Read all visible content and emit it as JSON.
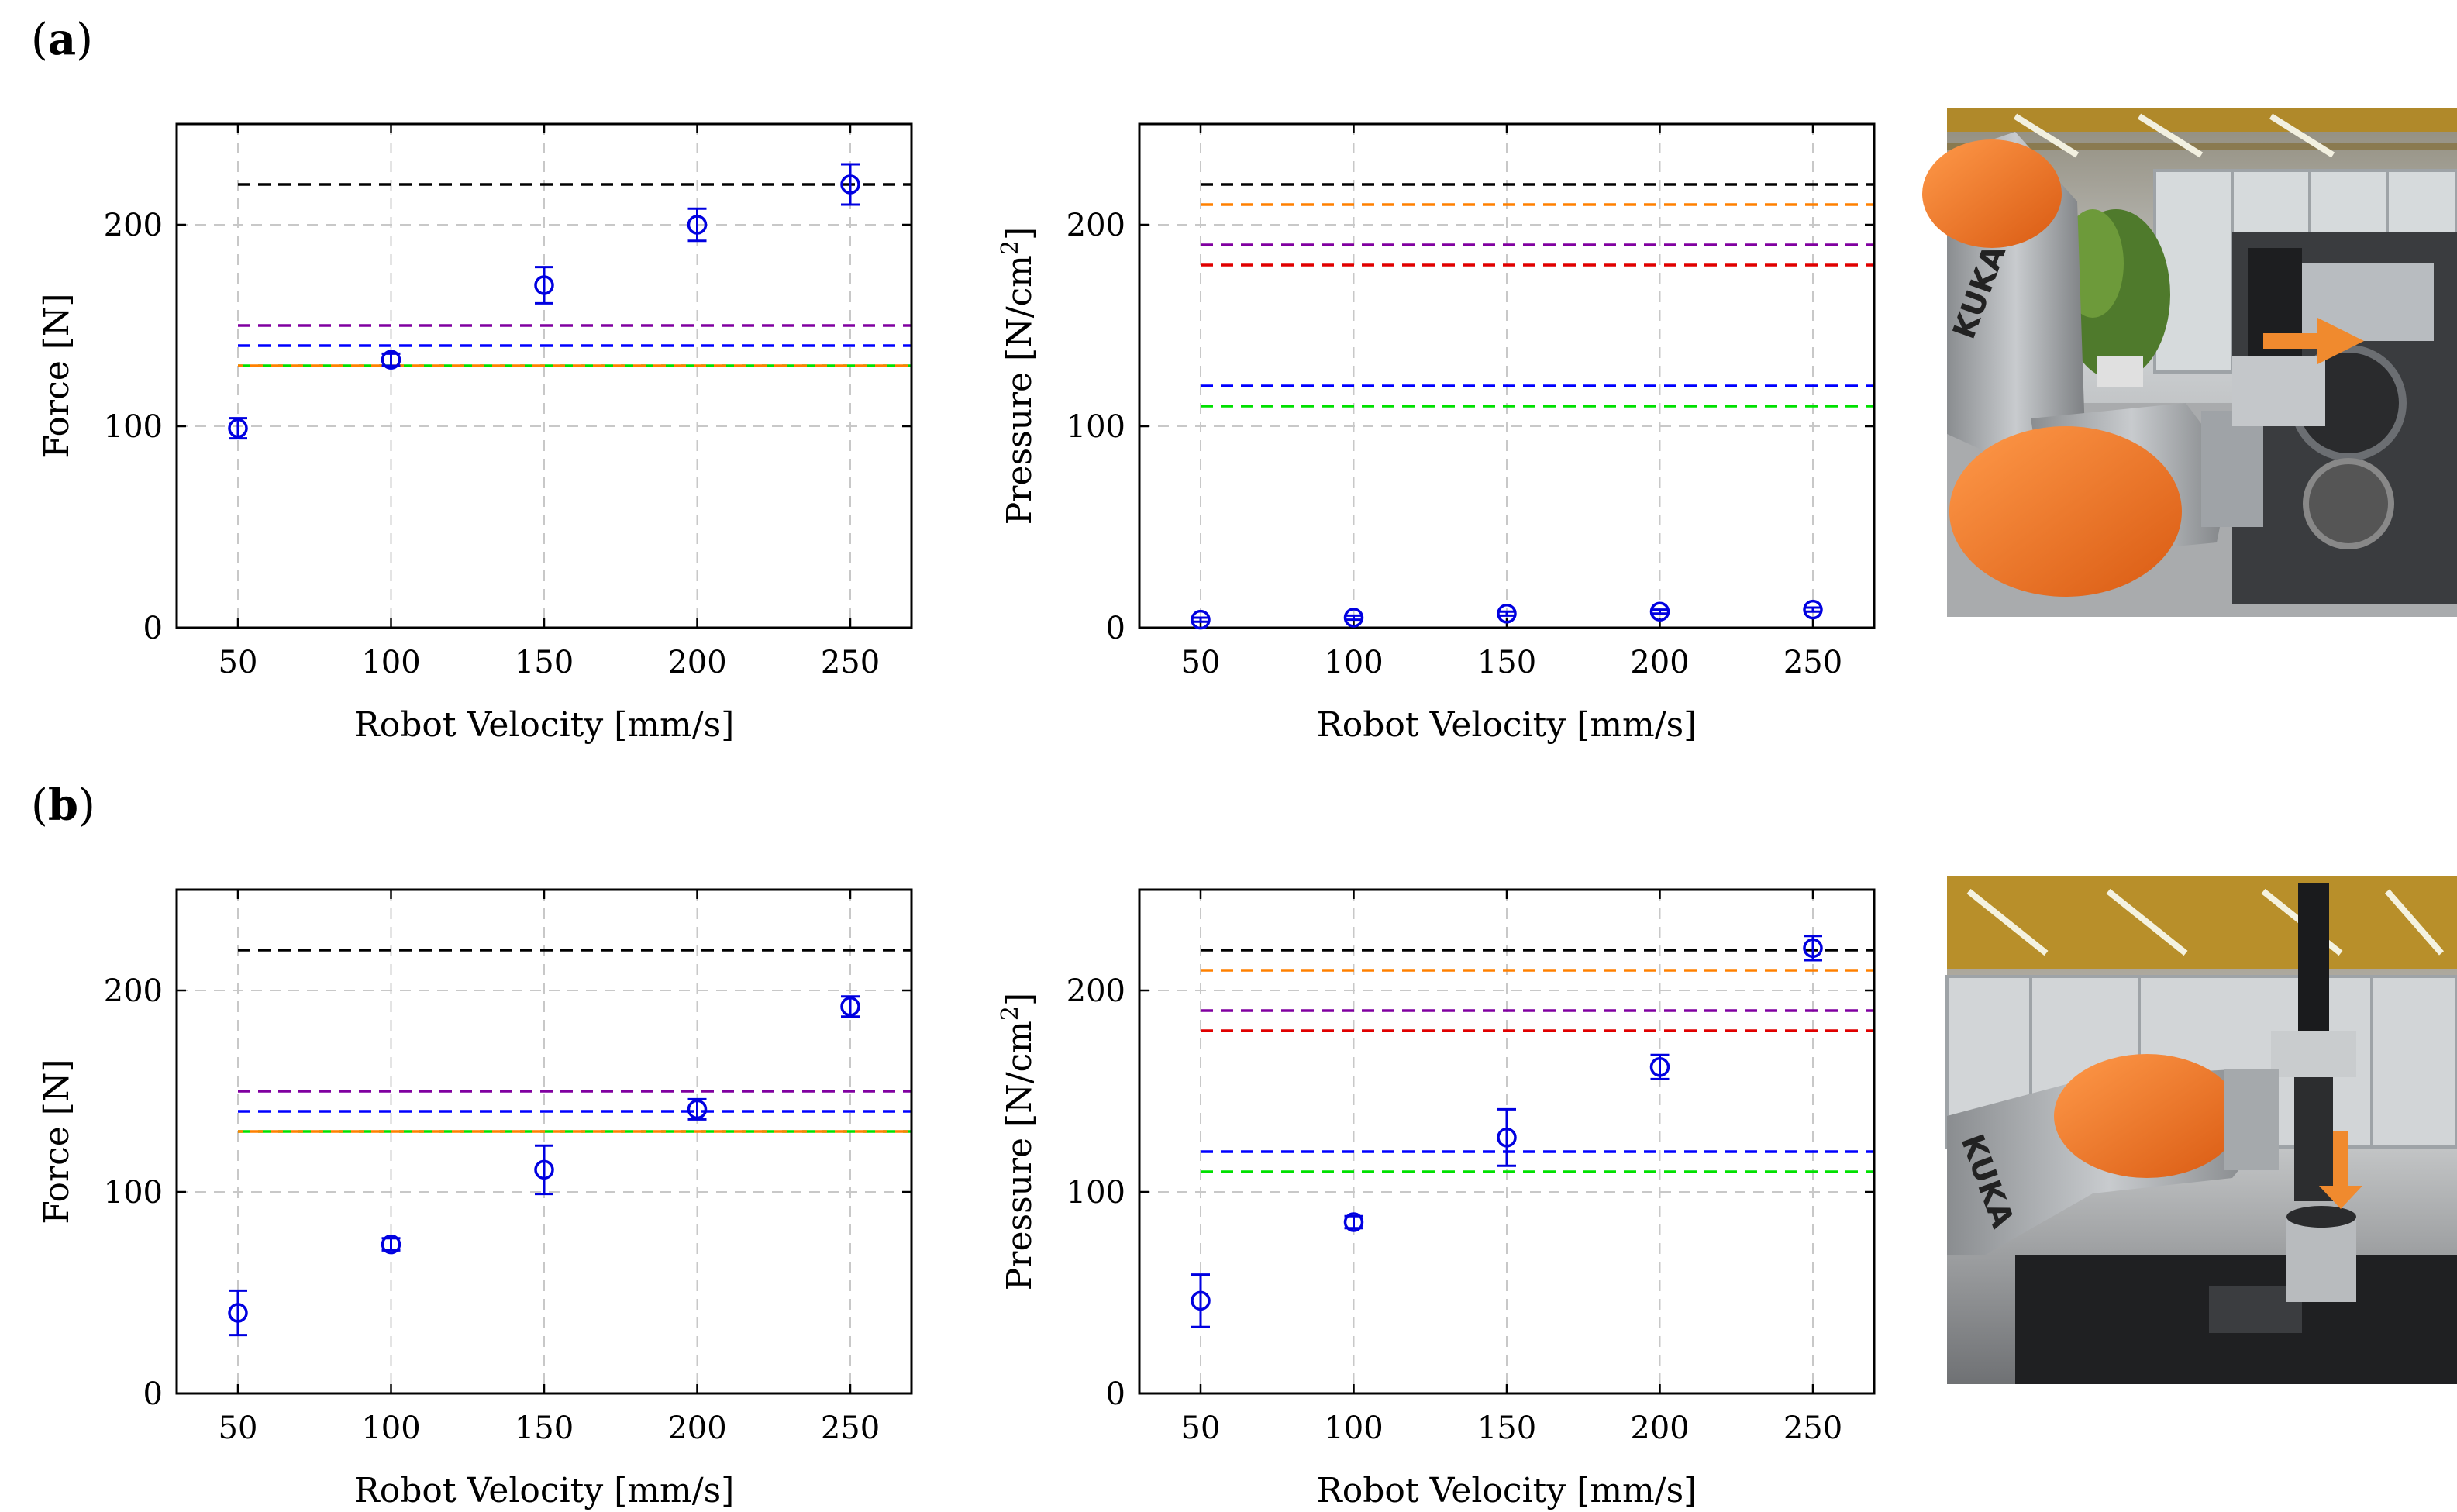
{
  "figure": {
    "panels": [
      {
        "label_open": "(",
        "label_letter": "a",
        "label_close": ")"
      },
      {
        "label_open": "(",
        "label_letter": "b",
        "label_close": ")"
      }
    ],
    "photos": [
      {
        "name": "photo-a",
        "brand_text": "KUKA"
      },
      {
        "name": "photo-b",
        "brand_text": "KUKA"
      }
    ]
  },
  "colors": {
    "marker": "#0000e0",
    "black": "#000000",
    "orange": "#ff8000",
    "purple": "#8000a0",
    "red": "#e00000",
    "blue": "#0000ff",
    "green": "#00e000",
    "grid": "#c8c8c8"
  },
  "chart_data": [
    {
      "id": "a-force",
      "type": "scatter",
      "xlabel": "Robot Velocity [mm/s]",
      "ylabel": "Force [N]",
      "ylabel_sup": "",
      "xlim": [
        30,
        270
      ],
      "ylim": [
        0,
        250
      ],
      "xticks": [
        50,
        100,
        150,
        200,
        250
      ],
      "yticks": [
        0,
        100,
        200
      ],
      "x": [
        50,
        100,
        150,
        200,
        250
      ],
      "y": [
        99,
        133,
        170,
        200,
        220
      ],
      "err": [
        5,
        3,
        9,
        8,
        10
      ],
      "thresholds": [
        {
          "color": "black",
          "value": 220
        },
        {
          "color": "purple",
          "value": 150
        },
        {
          "color": "blue",
          "value": 140
        },
        {
          "color": "green",
          "value": 130
        },
        {
          "color": "orange",
          "value": 130
        }
      ]
    },
    {
      "id": "a-pressure",
      "type": "scatter",
      "xlabel": "Robot Velocity [mm/s]",
      "ylabel": "Pressure [N/cm",
      "ylabel_sup": "2",
      "ylabel_end": "]",
      "xlim": [
        30,
        270
      ],
      "ylim": [
        0,
        250
      ],
      "xticks": [
        50,
        100,
        150,
        200,
        250
      ],
      "yticks": [
        0,
        100,
        200
      ],
      "x": [
        50,
        100,
        150,
        200,
        250
      ],
      "y": [
        4,
        5,
        7,
        8,
        9
      ],
      "err": [
        1,
        1,
        1,
        1,
        1
      ],
      "thresholds": [
        {
          "color": "black",
          "value": 220
        },
        {
          "color": "orange",
          "value": 210
        },
        {
          "color": "purple",
          "value": 190
        },
        {
          "color": "red",
          "value": 180
        },
        {
          "color": "blue",
          "value": 120
        },
        {
          "color": "green",
          "value": 110
        }
      ]
    },
    {
      "id": "b-force",
      "type": "scatter",
      "xlabel": "Robot Velocity [mm/s]",
      "ylabel": "Force [N]",
      "ylabel_sup": "",
      "xlim": [
        30,
        270
      ],
      "ylim": [
        0,
        250
      ],
      "xticks": [
        50,
        100,
        150,
        200,
        250
      ],
      "yticks": [
        0,
        100,
        200
      ],
      "x": [
        50,
        100,
        150,
        200,
        250
      ],
      "y": [
        40,
        74,
        111,
        141,
        192
      ],
      "err": [
        11,
        3,
        12,
        5,
        5
      ],
      "thresholds": [
        {
          "color": "black",
          "value": 220
        },
        {
          "color": "purple",
          "value": 150
        },
        {
          "color": "blue",
          "value": 140
        },
        {
          "color": "green",
          "value": 130
        },
        {
          "color": "orange",
          "value": 130
        }
      ]
    },
    {
      "id": "b-pressure",
      "type": "scatter",
      "xlabel": "Robot Velocity [mm/s]",
      "ylabel": "Pressure [N/cm",
      "ylabel_sup": "2",
      "ylabel_end": "]",
      "xlim": [
        30,
        270
      ],
      "ylim": [
        0,
        250
      ],
      "xticks": [
        50,
        100,
        150,
        200,
        250
      ],
      "yticks": [
        0,
        100,
        200
      ],
      "x": [
        50,
        100,
        150,
        200,
        250
      ],
      "y": [
        46,
        85,
        127,
        162,
        221
      ],
      "err": [
        13,
        3,
        14,
        6,
        6
      ],
      "thresholds": [
        {
          "color": "black",
          "value": 220
        },
        {
          "color": "orange",
          "value": 210
        },
        {
          "color": "purple",
          "value": 190
        },
        {
          "color": "red",
          "value": 180
        },
        {
          "color": "blue",
          "value": 120
        },
        {
          "color": "green",
          "value": 110
        }
      ]
    }
  ]
}
